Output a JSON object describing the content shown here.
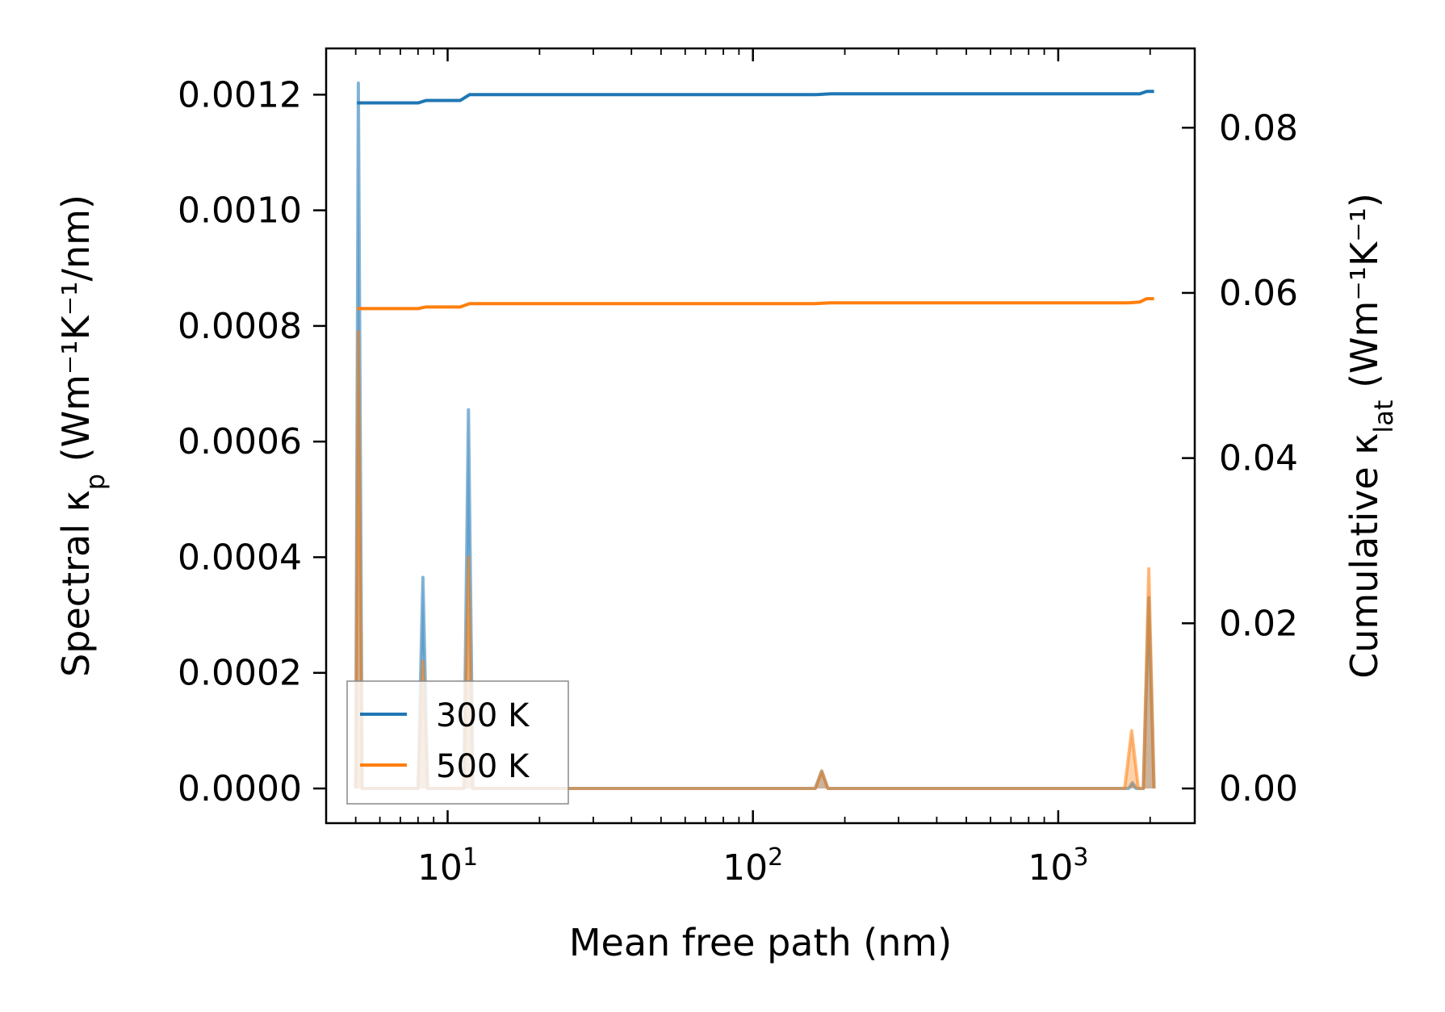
{
  "chart_data": {
    "type": "line",
    "xlabel": "Mean free path (nm)",
    "ylabel": {
      "prefix": "Spectral κ",
      "sub": "p",
      "suffix": " (Wm⁻¹K⁻¹/nm)"
    },
    "y2label": {
      "prefix": "Cumulative κ",
      "sub": "lat",
      "suffix": " (Wm⁻¹K⁻¹)"
    },
    "x_scale": "log",
    "xlim": [
      4.0,
      2800
    ],
    "ylim": [
      -6e-05,
      0.00128
    ],
    "y2lim": [
      -0.0042,
      0.0896
    ],
    "x_ticks": [
      {
        "value": 10,
        "base": "10",
        "exp": "1"
      },
      {
        "value": 100,
        "base": "10",
        "exp": "2"
      },
      {
        "value": 1000,
        "base": "10",
        "exp": "3"
      }
    ],
    "y_ticks": [
      {
        "value": 0.0,
        "label": "0.0000"
      },
      {
        "value": 0.0002,
        "label": "0.0002"
      },
      {
        "value": 0.0004,
        "label": "0.0004"
      },
      {
        "value": 0.0006,
        "label": "0.0006"
      },
      {
        "value": 0.0008,
        "label": "0.0008"
      },
      {
        "value": 0.001,
        "label": "0.0010"
      },
      {
        "value": 0.0012,
        "label": "0.0012"
      }
    ],
    "y2_ticks": [
      {
        "value": 0.0,
        "label": "0.00"
      },
      {
        "value": 0.02,
        "label": "0.02"
      },
      {
        "value": 0.04,
        "label": "0.04"
      },
      {
        "value": 0.06,
        "label": "0.06"
      },
      {
        "value": 0.08,
        "label": "0.08"
      }
    ],
    "grid": false,
    "legend_position": "lower-left",
    "series": [
      {
        "name": "300 K",
        "color": "#1f77b4",
        "spectral": [
          [
            5.0,
            0.0
          ],
          [
            5.1,
            0.00122
          ],
          [
            5.25,
            0.0
          ],
          [
            8.0,
            0.0
          ],
          [
            8.3,
            0.000365
          ],
          [
            8.6,
            0.0
          ],
          [
            11.3,
            0.0
          ],
          [
            11.7,
            0.000655
          ],
          [
            12.1,
            0.0
          ],
          [
            160,
            0.0
          ],
          [
            168,
            3e-05
          ],
          [
            176,
            0.0
          ],
          [
            1700,
            0.0
          ],
          [
            1750,
            1e-05
          ],
          [
            1800,
            0.0
          ],
          [
            1900,
            0.0
          ],
          [
            1980,
            0.00033
          ],
          [
            2060,
            0.0
          ]
        ],
        "cumulative": [
          [
            5.05,
            0.083
          ],
          [
            8.0,
            0.083
          ],
          [
            8.5,
            0.0833
          ],
          [
            11.0,
            0.0833
          ],
          [
            11.8,
            0.084
          ],
          [
            160,
            0.084
          ],
          [
            180,
            0.0841
          ],
          [
            1850,
            0.0841
          ],
          [
            1950,
            0.0844
          ],
          [
            2060,
            0.0844
          ]
        ]
      },
      {
        "name": "500 K",
        "color": "#ff7f0e",
        "spectral": [
          [
            5.0,
            0.0
          ],
          [
            5.1,
            0.00079
          ],
          [
            5.25,
            0.0
          ],
          [
            8.0,
            0.0
          ],
          [
            8.3,
            0.00022
          ],
          [
            8.6,
            0.0
          ],
          [
            11.3,
            0.0
          ],
          [
            11.7,
            0.0004
          ],
          [
            12.1,
            0.0
          ],
          [
            160,
            0.0
          ],
          [
            168,
            3e-05
          ],
          [
            176,
            0.0
          ],
          [
            1650,
            0.0
          ],
          [
            1740,
            0.0001
          ],
          [
            1830,
            0.0
          ],
          [
            1900,
            0.0
          ],
          [
            1980,
            0.00038
          ],
          [
            2060,
            0.0
          ]
        ],
        "cumulative": [
          [
            5.05,
            0.0581
          ],
          [
            8.0,
            0.0581
          ],
          [
            8.5,
            0.0583
          ],
          [
            11.0,
            0.0583
          ],
          [
            11.8,
            0.0587
          ],
          [
            160,
            0.0587
          ],
          [
            180,
            0.0588
          ],
          [
            1700,
            0.0588
          ],
          [
            1850,
            0.0589
          ],
          [
            1950,
            0.0593
          ],
          [
            2060,
            0.0593
          ]
        ]
      }
    ]
  }
}
